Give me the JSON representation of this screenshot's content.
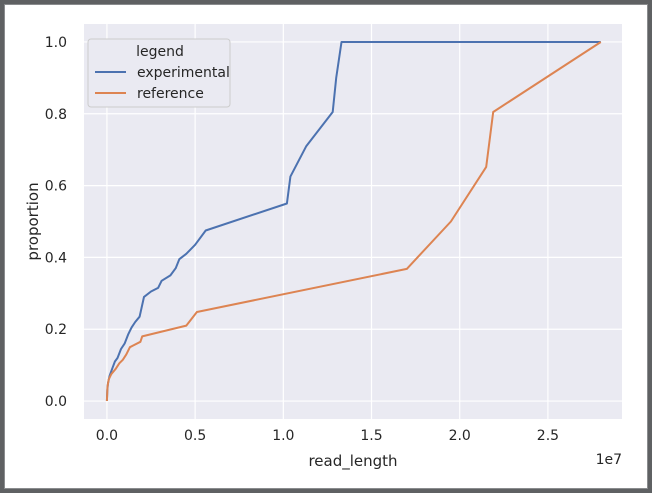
{
  "chart_data": {
    "type": "line",
    "xlabel": "read_length",
    "ylabel": "proportion",
    "x_scale_label": "1e7",
    "xlim": [
      -1300000,
      29200000
    ],
    "ylim": [
      -0.05,
      1.05
    ],
    "x_ticks": [
      0,
      5000000,
      10000000,
      15000000,
      20000000,
      25000000
    ],
    "x_tick_labels": [
      "0.0",
      "0.5",
      "1.0",
      "1.5",
      "2.0",
      "2.5"
    ],
    "y_ticks": [
      0.0,
      0.2,
      0.4,
      0.6,
      0.8,
      1.0
    ],
    "y_tick_labels": [
      "0.0",
      "0.2",
      "0.4",
      "0.6",
      "0.8",
      "1.0"
    ],
    "grid": true,
    "background": "#eaeaf2",
    "legend": {
      "title": "legend",
      "placement": "top-left"
    },
    "series": [
      {
        "name": "experimental",
        "color": "#4c72b0",
        "points": [
          [
            0,
            0.0
          ],
          [
            20000,
            0.03
          ],
          [
            60000,
            0.05
          ],
          [
            150000,
            0.07
          ],
          [
            300000,
            0.09
          ],
          [
            450000,
            0.11
          ],
          [
            600000,
            0.12
          ],
          [
            800000,
            0.145
          ],
          [
            1000000,
            0.16
          ],
          [
            1200000,
            0.185
          ],
          [
            1400000,
            0.205
          ],
          [
            1600000,
            0.22
          ],
          [
            1850000,
            0.235
          ],
          [
            2100000,
            0.29
          ],
          [
            2500000,
            0.305
          ],
          [
            2900000,
            0.315
          ],
          [
            3100000,
            0.335
          ],
          [
            3600000,
            0.35
          ],
          [
            3900000,
            0.37
          ],
          [
            4100000,
            0.395
          ],
          [
            4500000,
            0.41
          ],
          [
            5000000,
            0.435
          ],
          [
            5600000,
            0.475
          ],
          [
            10200000,
            0.55
          ],
          [
            10400000,
            0.625
          ],
          [
            11300000,
            0.71
          ],
          [
            12800000,
            0.805
          ],
          [
            13000000,
            0.9
          ],
          [
            13300000,
            1.0
          ],
          [
            28000000,
            1.0
          ]
        ]
      },
      {
        "name": "reference",
        "color": "#dd8452",
        "points": [
          [
            0,
            0.0
          ],
          [
            30000,
            0.04
          ],
          [
            100000,
            0.06
          ],
          [
            250000,
            0.075
          ],
          [
            500000,
            0.09
          ],
          [
            700000,
            0.105
          ],
          [
            900000,
            0.115
          ],
          [
            1100000,
            0.13
          ],
          [
            1300000,
            0.15
          ],
          [
            1500000,
            0.155
          ],
          [
            1900000,
            0.165
          ],
          [
            2000000,
            0.18
          ],
          [
            4500000,
            0.21
          ],
          [
            5100000,
            0.248
          ],
          [
            17000000,
            0.368
          ],
          [
            19500000,
            0.5
          ],
          [
            21500000,
            0.652
          ],
          [
            21900000,
            0.805
          ],
          [
            28000000,
            1.0
          ]
        ]
      }
    ]
  }
}
